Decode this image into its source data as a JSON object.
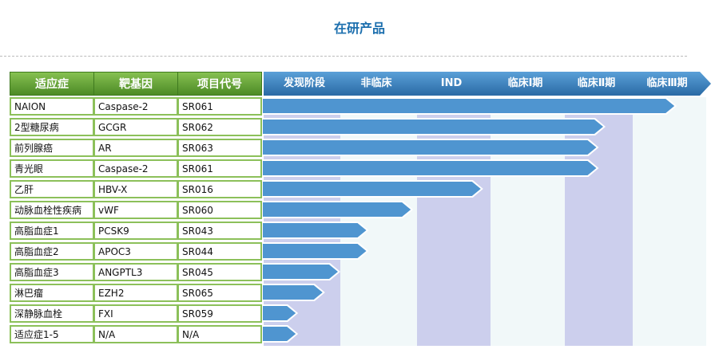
{
  "title": "在研产品",
  "headers": [
    "适应症",
    "靶基因",
    "项目代号"
  ],
  "stages": [
    "发现阶段",
    "非临床",
    "IND",
    "临床Ⅰ期",
    "临床Ⅱ期",
    "临床Ⅲ期"
  ],
  "colors": {
    "header_green": "#5f9e34",
    "stage_blue": "#2f73ad",
    "bar_blue": "#4f95d0",
    "col_lavender": "#cccfed",
    "col_light": "#f1f8f9",
    "title": "#1c6fae"
  },
  "rows": [
    {
      "indication": "NAION",
      "target": "Caspase-2",
      "code": "SR061",
      "progress_stages": 5.6
    },
    {
      "indication": "2型糖尿病",
      "target": "GCGR",
      "code": "SR062",
      "progress_stages": 4.6
    },
    {
      "indication": "前列腺癌",
      "target": "AR",
      "code": "SR063",
      "progress_stages": 4.5
    },
    {
      "indication": "青光眼",
      "target": "Caspase-2",
      "code": "SR061",
      "progress_stages": 4.5
    },
    {
      "indication": "乙肝",
      "target": "HBV-X",
      "code": "SR016",
      "progress_stages": 2.9
    },
    {
      "indication": "动脉血栓性疾病",
      "target": "vWF",
      "code": "SR060",
      "progress_stages": 1.95
    },
    {
      "indication": "高脂血症1",
      "target": "PCSK9",
      "code": "SR043",
      "progress_stages": 1.37
    },
    {
      "indication": "高脂血症2",
      "target": "APOC3",
      "code": "SR044",
      "progress_stages": 1.37
    },
    {
      "indication": "高脂血症3",
      "target": "ANGPTL3",
      "code": "SR045",
      "progress_stages": 1.0
    },
    {
      "indication": "淋巴瘤",
      "target": "EZH2",
      "code": "SR065",
      "progress_stages": 0.8
    },
    {
      "indication": "深静脉血栓",
      "target": "FXI",
      "code": "SR059",
      "progress_stages": 0.45
    },
    {
      "indication": "适应症1-5",
      "target": "N/A",
      "code": "N/A",
      "progress_stages": 0.45
    }
  ]
}
